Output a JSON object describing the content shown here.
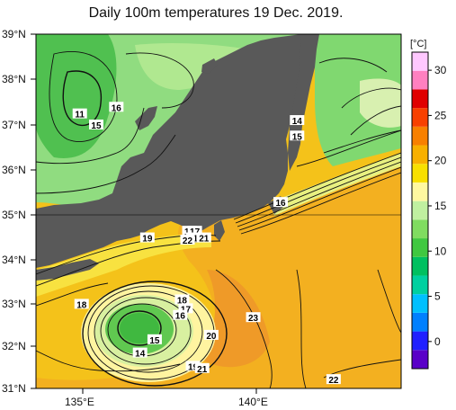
{
  "title": "Daily 100m temperatures 19 Dec. 2019.",
  "lat_labels": [
    "39°N",
    "38°N",
    "37°N",
    "36°N",
    "35°N",
    "34°N",
    "33°N",
    "32°N",
    "31°N"
  ],
  "lon_labels": [
    "135°E",
    "140°E"
  ],
  "colorbar": {
    "unit": "[°C]",
    "ticks": [
      "30",
      "25",
      "20",
      "15",
      "10",
      "5",
      "0"
    ],
    "range": [
      -3,
      32
    ],
    "colors": [
      "#5a00c8",
      "#2020ff",
      "#0080ff",
      "#00c0ff",
      "#00d0a0",
      "#00c060",
      "#40c840",
      "#80dc60",
      "#c0f0a0",
      "#fff8a0",
      "#f8e000",
      "#f8b000",
      "#f88000",
      "#f84000",
      "#e00000",
      "#ff80c0",
      "#ffc8ff"
    ]
  },
  "contour_labels": [
    {
      "text": "16",
      "lon": 136.2,
      "lat": 37.35
    },
    {
      "text": "11",
      "lon": 135.2,
      "lat": 37.2
    },
    {
      "text": "15",
      "lon": 135.65,
      "lat": 36.95
    },
    {
      "text": "14",
      "lon": 141.15,
      "lat": 37.05
    },
    {
      "text": "15",
      "lon": 141.15,
      "lat": 36.7
    },
    {
      "text": "16",
      "lon": 140.7,
      "lat": 35.2
    },
    {
      "text": "19",
      "lon": 137.05,
      "lat": 34.4
    },
    {
      "text": "14",
      "lon": 138.2,
      "lat": 34.55
    },
    {
      "text": "17",
      "lon": 138.35,
      "lat": 34.55
    },
    {
      "text": "21",
      "lon": 138.3,
      "lat": 34.4
    },
    {
      "text": "22",
      "lon": 138.15,
      "lat": 34.35
    },
    {
      "text": "21",
      "lon": 138.6,
      "lat": 34.4
    },
    {
      "text": "18",
      "lon": 135.25,
      "lat": 32.9
    },
    {
      "text": "18",
      "lon": 138.0,
      "lat": 33.0
    },
    {
      "text": "17",
      "lon": 138.1,
      "lat": 32.8
    },
    {
      "text": "16",
      "lon": 137.95,
      "lat": 32.65
    },
    {
      "text": "23",
      "lon": 139.95,
      "lat": 32.6
    },
    {
      "text": "20",
      "lon": 138.8,
      "lat": 32.2
    },
    {
      "text": "15",
      "lon": 137.25,
      "lat": 32.1
    },
    {
      "text": "14",
      "lon": 136.85,
      "lat": 31.8
    },
    {
      "text": "19",
      "lon": 138.3,
      "lat": 31.5
    },
    {
      "text": "21",
      "lon": 138.55,
      "lat": 31.45
    },
    {
      "text": "22",
      "lon": 142.15,
      "lat": 31.2
    }
  ]
}
